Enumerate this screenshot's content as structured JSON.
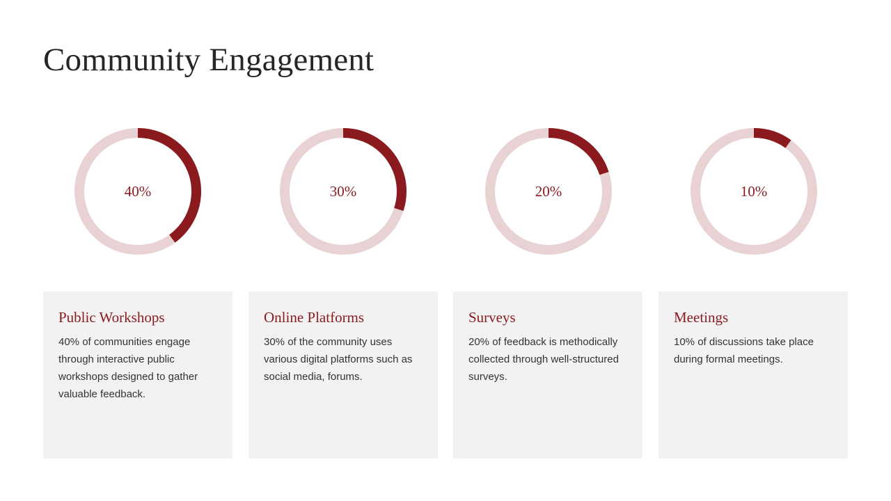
{
  "page": {
    "title": "Community Engagement"
  },
  "colors": {
    "accent": "#8b1a1e",
    "track": "#e8d2d4",
    "card_background": "#f2f2f2",
    "title_text": "#262626",
    "body_text": "#333333"
  },
  "chart_data": [
    {
      "type": "donut",
      "title": "",
      "value": 40,
      "max": 100,
      "center_label": "40%",
      "category": "Public Workshops",
      "description": "40% of communities engage through interactive public workshops designed to gather valuable feedback."
    },
    {
      "type": "donut",
      "title": "",
      "value": 30,
      "max": 100,
      "center_label": "30%",
      "category": "Online Platforms",
      "description": "30% of the community uses various digital platforms such as social media, forums."
    },
    {
      "type": "donut",
      "title": "",
      "value": 20,
      "max": 100,
      "center_label": "20%",
      "category": "Surveys",
      "description": "20% of feedback is methodically collected through well-structured surveys."
    },
    {
      "type": "donut",
      "title": "",
      "value": 10,
      "max": 100,
      "center_label": "10%",
      "category": "Meetings",
      "description": "10% of discussions take place during formal meetings."
    }
  ]
}
